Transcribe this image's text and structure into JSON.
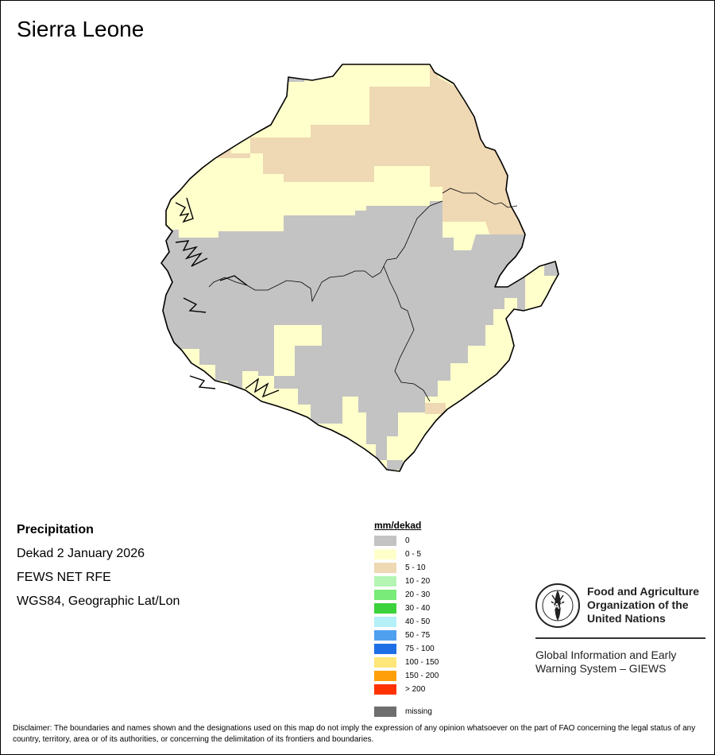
{
  "title": "Sierra Leone",
  "info": {
    "variable": "Precipitation",
    "period": "Dekad 2 January 2026",
    "source": "FEWS NET RFE",
    "projection": "WGS84, Geographic Lat/Lon"
  },
  "legend": {
    "title": "mm/dekad",
    "classes": [
      {
        "label": "0",
        "color": "#c3c3c3"
      },
      {
        "label": "0 - 5",
        "color": "#ffffcc"
      },
      {
        "label": "5 - 10",
        "color": "#efd8b4"
      },
      {
        "label": "10 - 20",
        "color": "#b4f5b4"
      },
      {
        "label": "20 - 30",
        "color": "#78eb78"
      },
      {
        "label": "30 - 40",
        "color": "#3cd23c"
      },
      {
        "label": "40 - 50",
        "color": "#b4f0f8"
      },
      {
        "label": "50 - 75",
        "color": "#50a0f0"
      },
      {
        "label": "75 - 100",
        "color": "#1e6ee6"
      },
      {
        "label": "100 - 150",
        "color": "#ffe678"
      },
      {
        "label": "150 - 200",
        "color": "#ffa00a"
      },
      {
        "label": "> 200",
        "color": "#ff3200"
      }
    ],
    "missing": {
      "label": "missing",
      "color": "#6e6e6e"
    }
  },
  "organization": {
    "logo_text": "FAO",
    "name_line1": "Food and Agriculture",
    "name_line2": "Organization of the",
    "name_line3": "United Nations",
    "system_line1": "Global Information and Early",
    "system_line2": "Warning System – GIEWS"
  },
  "disclaimer": "Disclaimer: The boundaries and names shown and the designations used on this map do not imply the expression of any opinion whatsoever on the part of FAO concerning the legal status of any country, territory, area or of its authorities, or concerning the delimitation of its frontiers and boundaries."
}
